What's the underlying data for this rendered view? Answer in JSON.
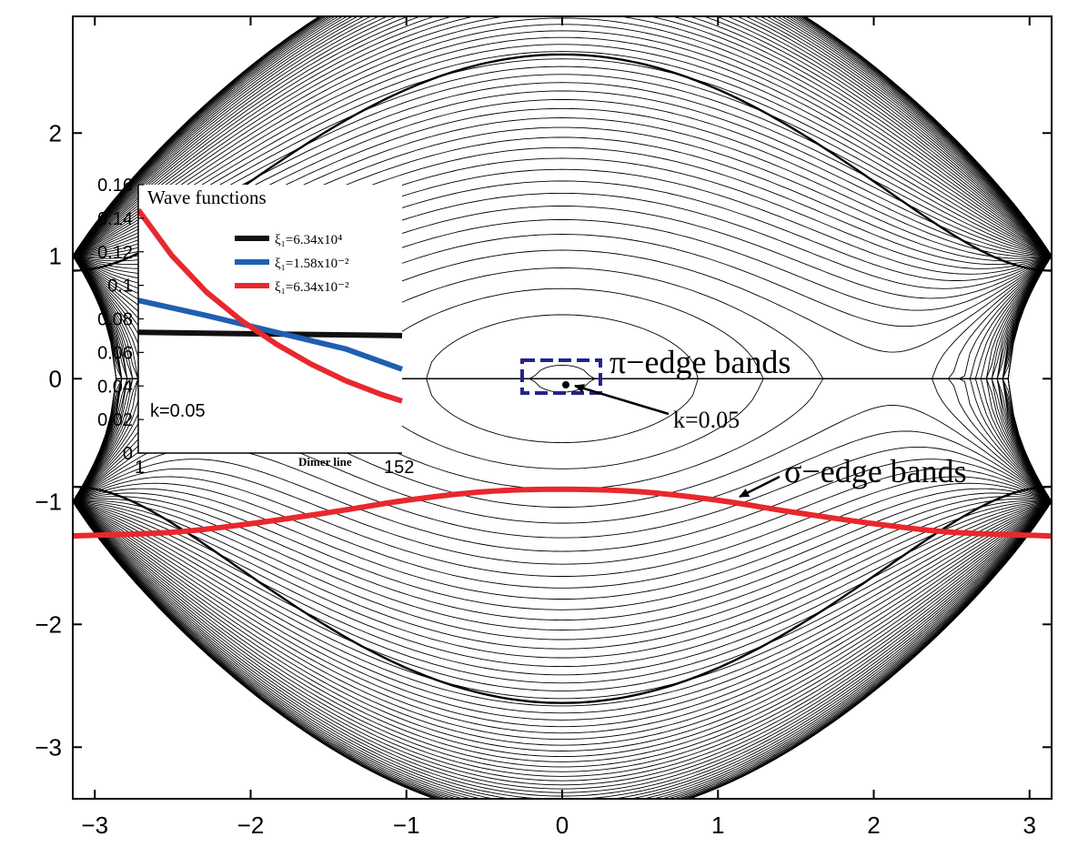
{
  "chart_data": [
    {
      "type": "line",
      "title": "",
      "xlabel": "",
      "ylabel": "",
      "xlim": [
        -3.1416,
        3.1416
      ],
      "ylim": [
        -3.42,
        2.95
      ],
      "x_ticks": [
        -3,
        -2,
        -1,
        0,
        1,
        2,
        3
      ],
      "x_tick_labels": [
        "−3",
        "−2",
        "−1",
        "0",
        "1",
        "2",
        "3"
      ],
      "y_ticks": [
        2,
        1,
        0,
        -1,
        -2,
        -3
      ],
      "y_tick_labels": [
        "2",
        "1",
        "0",
        "−1",
        "−2",
        "−3"
      ],
      "grid": false,
      "series": [
        {
          "name": "σ−edge bands",
          "color": "#e8282e",
          "x": [
            -3.14,
            -2.5,
            -2.0,
            -1.5,
            -1.0,
            -0.5,
            0.0,
            0.5,
            1.0,
            1.5,
            2.0,
            2.5,
            3.14
          ],
          "y": [
            -1.28,
            -1.25,
            -1.18,
            -1.09,
            -0.99,
            -0.92,
            -0.9,
            -0.92,
            -0.99,
            -1.09,
            -1.18,
            -1.25,
            -1.28
          ]
        }
      ],
      "annotations": [
        {
          "text": "π−edge bands",
          "x": 0.0,
          "y": 0.0
        },
        {
          "text": "k=0.05",
          "x": 0.05,
          "y": -0.05
        },
        {
          "text": "σ−edge bands",
          "x": 1.2,
          "y": -0.95
        }
      ]
    },
    {
      "type": "line",
      "title": "Wave functions",
      "xlabel": "Dimer line",
      "ylabel": "",
      "xlim": [
        1,
        152
      ],
      "ylim": [
        0,
        0.16
      ],
      "x_tick_labels": [
        "1",
        "152"
      ],
      "y_ticks": [
        0,
        0.02,
        0.04,
        0.06,
        0.08,
        0.1,
        0.12,
        0.14,
        0.16
      ],
      "y_tick_labels": [
        "0",
        "0.02",
        "0.04",
        "0.06",
        "0.08",
        "0.1",
        "0.12",
        "0.14",
        "0.16"
      ],
      "legend_position": "top-right",
      "annotation": "k=0.05",
      "series": [
        {
          "name": "ξ₁=6.34x10⁴",
          "color": "#111111",
          "x": [
            1,
            152
          ],
          "y": [
            0.072,
            0.07
          ]
        },
        {
          "name": "ξ₁=1.58x10⁻²",
          "color": "#1f5fb0",
          "x": [
            1,
            40,
            80,
            120,
            152
          ],
          "y": [
            0.091,
            0.082,
            0.072,
            0.062,
            0.05
          ]
        },
        {
          "name": "ξ₁=6.34x10⁻²",
          "color": "#e8282e",
          "x": [
            1,
            20,
            40,
            60,
            80,
            100,
            120,
            140,
            152
          ],
          "y": [
            0.145,
            0.118,
            0.096,
            0.079,
            0.065,
            0.053,
            0.043,
            0.035,
            0.031
          ]
        }
      ]
    }
  ]
}
